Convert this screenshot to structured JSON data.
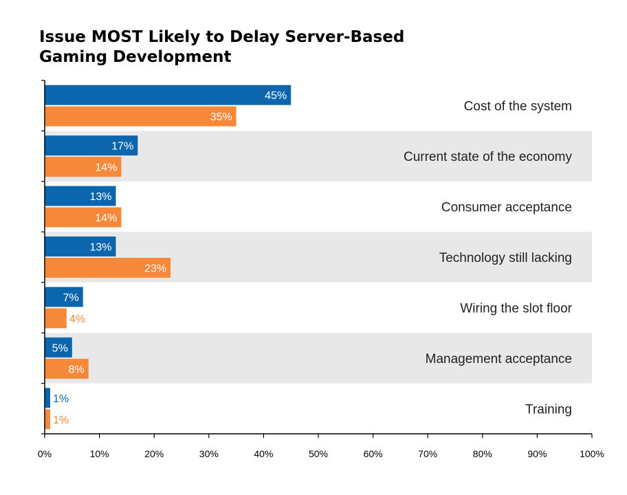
{
  "chart_data": {
    "type": "bar",
    "orientation": "horizontal",
    "title_lines": [
      "Issue MOST Likely to Delay Server-Based",
      "Gaming Development"
    ],
    "categories": [
      "Cost of the system",
      "Current state of the economy",
      "Consumer acceptance",
      "Technology still lacking",
      "Wiring the slot floor",
      "Management acceptance",
      "Training"
    ],
    "series": [
      {
        "color": "#0b66ad",
        "values": [
          45,
          17,
          13,
          13,
          7,
          5,
          1
        ],
        "labels": [
          "45%",
          "17%",
          "13%",
          "13%",
          "7%",
          "5%",
          "1%"
        ]
      },
      {
        "color": "#f6883a",
        "values": [
          35,
          14,
          14,
          23,
          4,
          8,
          1
        ],
        "labels": [
          "35%",
          "14%",
          "14%",
          "23%",
          "4%",
          "8%",
          "1%"
        ]
      }
    ],
    "x_ticks": [
      "0%",
      "10%",
      "20%",
      "30%",
      "40%",
      "50%",
      "60%",
      "70%",
      "80%",
      "90%",
      "100%"
    ],
    "xlim": [
      0,
      100
    ],
    "band_color": "#e8e8e8",
    "grid": false,
    "legend": "none"
  }
}
